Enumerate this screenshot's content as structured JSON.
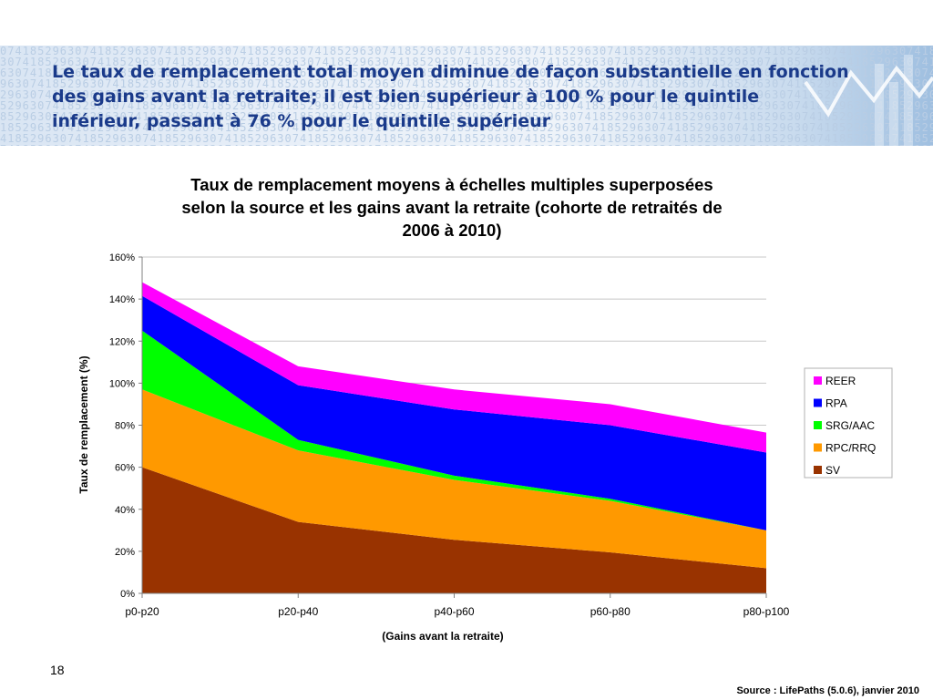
{
  "slide": {
    "title": "Le taux de remplacement total moyen diminue de façon substantielle en fonction des gains avant la retraite; il est bien supérieur à 100 % pour le quintile inférieur, passant à 76 % pour le quintile supérieur",
    "page_number": "18",
    "source": "Source : LifePaths  (5.0.6), janvier 2010",
    "title_color": "#1a3a8a"
  },
  "chart_data": {
    "type": "area",
    "stacked": true,
    "title": "Taux de remplacement moyens à échelles multiples superposées selon la source et les gains avant la retraite (cohorte de retraités de 2006 à 2010)",
    "xlabel": "(Gains avant la retraite)",
    "ylabel": "Taux de remplacement  (%)",
    "categories": [
      "p0-p20",
      "p20-p40",
      "p40-p60",
      "p60-p80",
      "p80-p100"
    ],
    "yticks": [
      "0%",
      "20%",
      "40%",
      "60%",
      "80%",
      "100%",
      "120%",
      "140%",
      "160%"
    ],
    "ylim": [
      0,
      160
    ],
    "grid": true,
    "legend": "right",
    "series": [
      {
        "name": "SV",
        "color": "#993300",
        "values": [
          60,
          34,
          25.5,
          19.5,
          12
        ]
      },
      {
        "name": "RPC/RRQ",
        "color": "#ff9900",
        "values": [
          37,
          34,
          28.5,
          24.5,
          18
        ]
      },
      {
        "name": "SRG/AAC",
        "color": "#00ff00",
        "values": [
          28,
          5,
          2,
          1,
          0
        ]
      },
      {
        "name": "RPA",
        "color": "#0000ff",
        "values": [
          16.5,
          26,
          31.5,
          35,
          37
        ]
      },
      {
        "name": "REER",
        "color": "#ff00ff",
        "values": [
          6.5,
          9,
          9.5,
          10,
          9.5
        ]
      }
    ]
  }
}
